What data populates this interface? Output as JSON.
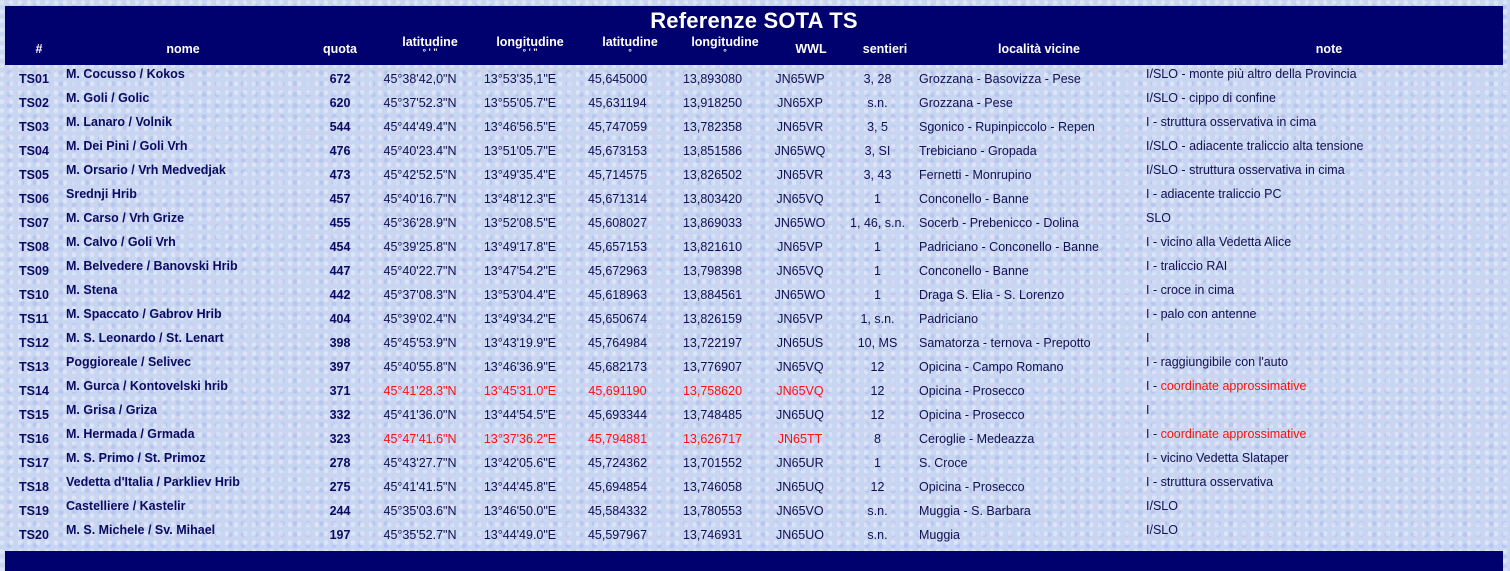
{
  "title": "Referenze SOTA TS",
  "headers": {
    "num": "#",
    "nome": "nome",
    "quota": "quota",
    "lat_dms": "latitudine",
    "lat_dms_unit": "° ' \"",
    "lon_dms": "longitudine",
    "lon_dms_unit": "° ' \"",
    "lat_dec": "latitudine",
    "lat_dec_unit": "°",
    "lon_dec": "longitudine",
    "lon_dec_unit": "°",
    "wwl": "WWL",
    "sentieri": "sentieri",
    "localita": "località vicine",
    "note": "note"
  },
  "colors": {
    "header_bg": "#00006e",
    "text": "#101050",
    "highlight": "#ff1010"
  },
  "rows": [
    {
      "id": "TS01",
      "nome": "M. Cocusso / Kokos",
      "quota": "672",
      "lat_dms": "45°38'42,0\"N",
      "lon_dms": "13°53'35,1\"E",
      "lat_dec": "45,645000",
      "lon_dec": "13,893080",
      "wwl": "JN65WP",
      "sentieri": "3, 28",
      "localita": "Grozzana - Basovizza - Pese",
      "note_prefix": "I/SLO - monte più altro della Provincia",
      "note_red": "",
      "red_coords": false
    },
    {
      "id": "TS02",
      "nome": "M. Goli / Golic",
      "quota": "620",
      "lat_dms": "45°37'52.3\"N",
      "lon_dms": "13°55'05.7\"E",
      "lat_dec": "45,631194",
      "lon_dec": "13,918250",
      "wwl": "JN65XP",
      "sentieri": "s.n.",
      "localita": "Grozzana - Pese",
      "note_prefix": "I/SLO - cippo di confine",
      "note_red": "",
      "red_coords": false
    },
    {
      "id": "TS03",
      "nome": "M. Lanaro / Volnik",
      "quota": "544",
      "lat_dms": "45°44'49.4\"N",
      "lon_dms": "13°46'56.5\"E",
      "lat_dec": "45,747059",
      "lon_dec": "13,782358",
      "wwl": "JN65VR",
      "sentieri": "3, 5",
      "localita": "Sgonico - Rupinpiccolo - Repen",
      "note_prefix": "I - struttura osservativa in cima",
      "note_red": "",
      "red_coords": false
    },
    {
      "id": "TS04",
      "nome": "M. Dei Pini / Goli Vrh",
      "quota": "476",
      "lat_dms": "45°40'23.4\"N",
      "lon_dms": "13°51'05.7\"E",
      "lat_dec": "45,673153",
      "lon_dec": "13,851586",
      "wwl": "JN65WQ",
      "sentieri": "3, SI",
      "localita": "Trebiciano - Gropada",
      "note_prefix": "I/SLO - adiacente traliccio alta tensione",
      "note_red": "",
      "red_coords": false
    },
    {
      "id": "TS05",
      "nome": "M. Orsario / Vrh Medvedjak",
      "quota": "473",
      "lat_dms": "45°42'52.5\"N",
      "lon_dms": "13°49'35.4\"E",
      "lat_dec": "45,714575",
      "lon_dec": "13,826502",
      "wwl": "JN65VR",
      "sentieri": "3, 43",
      "localita": "Fernetti - Monrupino",
      "note_prefix": "I/SLO - struttura osservativa in cima",
      "note_red": "",
      "red_coords": false
    },
    {
      "id": "TS06",
      "nome": "Srednji Hrib",
      "quota": "457",
      "lat_dms": "45°40'16.7\"N",
      "lon_dms": "13°48'12.3\"E",
      "lat_dec": "45,671314",
      "lon_dec": "13,803420",
      "wwl": "JN65VQ",
      "sentieri": "1",
      "localita": "Conconello - Banne",
      "note_prefix": "I - adiacente traliccio PC",
      "note_red": "",
      "red_coords": false
    },
    {
      "id": "TS07",
      "nome": "M. Carso / Vrh Grize",
      "quota": "455",
      "lat_dms": "45°36'28.9\"N",
      "lon_dms": "13°52'08.5\"E",
      "lat_dec": "45,608027",
      "lon_dec": "13,869033",
      "wwl": "JN65WO",
      "sentieri": "1, 46, s.n.",
      "localita": "Socerb - Prebenicco - Dolina",
      "note_prefix": "SLO",
      "note_red": "",
      "red_coords": false
    },
    {
      "id": "TS08",
      "nome": "M. Calvo / Goli Vrh",
      "quota": "454",
      "lat_dms": "45°39'25.8\"N",
      "lon_dms": "13°49'17.8\"E",
      "lat_dec": "45,657153",
      "lon_dec": "13,821610",
      "wwl": "JN65VP",
      "sentieri": "1",
      "localita": "Padriciano - Conconello - Banne",
      "note_prefix": "I - vicino alla Vedetta Alice",
      "note_red": "",
      "red_coords": false
    },
    {
      "id": "TS09",
      "nome": "M. Belvedere / Banovski Hrib",
      "quota": "447",
      "lat_dms": "45°40'22.7\"N",
      "lon_dms": "13°47'54.2\"E",
      "lat_dec": "45,672963",
      "lon_dec": "13,798398",
      "wwl": "JN65VQ",
      "sentieri": "1",
      "localita": "Conconello - Banne",
      "note_prefix": "I - traliccio RAI",
      "note_red": "",
      "red_coords": false
    },
    {
      "id": "TS10",
      "nome": "M. Stena",
      "quota": "442",
      "lat_dms": "45°37'08.3\"N",
      "lon_dms": "13°53'04.4\"E",
      "lat_dec": "45,618963",
      "lon_dec": "13,884561",
      "wwl": "JN65WO",
      "sentieri": "1",
      "localita": "Draga S. Elia - S. Lorenzo",
      "note_prefix": "I - croce in cima",
      "note_red": "",
      "red_coords": false
    },
    {
      "id": "TS11",
      "nome": "M. Spaccato / Gabrov Hrib",
      "quota": "404",
      "lat_dms": "45°39'02.4\"N",
      "lon_dms": "13°49'34.2\"E",
      "lat_dec": "45,650674",
      "lon_dec": "13,826159",
      "wwl": "JN65VP",
      "sentieri": "1, s.n.",
      "localita": "Padriciano",
      "note_prefix": "I - palo con antenne",
      "note_red": "",
      "red_coords": false
    },
    {
      "id": "TS12",
      "nome": "M. S. Leonardo /  St. Lenart",
      "quota": "398",
      "lat_dms": "45°45'53.9\"N",
      "lon_dms": "13°43'19.9\"E",
      "lat_dec": "45,764984",
      "lon_dec": "13,722197",
      "wwl": "JN65US",
      "sentieri": "10, MS",
      "localita": "Samatorza - ternova - Prepotto",
      "note_prefix": "I",
      "note_red": "",
      "red_coords": false
    },
    {
      "id": "TS13",
      "nome": "Poggioreale / Selivec",
      "quota": "397",
      "lat_dms": "45°40'55.8\"N",
      "lon_dms": "13°46'36.9\"E",
      "lat_dec": "45,682173",
      "lon_dec": "13,776907",
      "wwl": "JN65VQ",
      "sentieri": "12",
      "localita": "Opicina - Campo Romano",
      "note_prefix": "I - raggiungibile con l'auto",
      "note_red": "",
      "red_coords": false
    },
    {
      "id": "TS14",
      "nome": "M. Gurca / Kontovelski hrib",
      "quota": "371",
      "lat_dms": "45°41'28.3\"N",
      "lon_dms": "13°45'31.0\"E",
      "lat_dec": "45,691190",
      "lon_dec": "13,758620",
      "wwl": "JN65VQ",
      "sentieri": "12",
      "localita": "Opicina - Prosecco",
      "note_prefix": "I - ",
      "note_red": "coordinate approssimative",
      "red_coords": true
    },
    {
      "id": "TS15",
      "nome": "M. Grisa / Griza",
      "quota": "332",
      "lat_dms": "45°41'36.0\"N",
      "lon_dms": "13°44'54.5\"E",
      "lat_dec": "45,693344",
      "lon_dec": "13,748485",
      "wwl": "JN65UQ",
      "sentieri": "12",
      "localita": "Opicina - Prosecco",
      "note_prefix": "I",
      "note_red": "",
      "red_coords": false
    },
    {
      "id": "TS16",
      "nome": "M. Hermada / Grmada",
      "quota": "323",
      "lat_dms": "45°47'41.6\"N",
      "lon_dms": "13°37'36.2\"E",
      "lat_dec": "45,794881",
      "lon_dec": "13,626717",
      "wwl": "JN65TT",
      "sentieri": "8",
      "localita": "Ceroglie - Medeazza",
      "note_prefix": "I - ",
      "note_red": "coordinate approssimative",
      "red_coords": true
    },
    {
      "id": "TS17",
      "nome": "M. S. Primo / St. Primoz",
      "quota": "278",
      "lat_dms": "45°43'27.7\"N",
      "lon_dms": "13°42'05.6\"E",
      "lat_dec": "45,724362",
      "lon_dec": "13,701552",
      "wwl": "JN65UR",
      "sentieri": "1",
      "localita": "S. Croce",
      "note_prefix": "I - vicino Vedetta Slataper",
      "note_red": "",
      "red_coords": false
    },
    {
      "id": "TS18",
      "nome": "Vedetta d'Italia / Parkliev Hrib",
      "quota": "275",
      "lat_dms": "45°41'41.5\"N",
      "lon_dms": "13°44'45.8\"E",
      "lat_dec": "45,694854",
      "lon_dec": "13,746058",
      "wwl": "JN65UQ",
      "sentieri": "12",
      "localita": "Opicina - Prosecco",
      "note_prefix": "I - struttura osservativa",
      "note_red": "",
      "red_coords": false
    },
    {
      "id": "TS19",
      "nome": "Castelliere / Kastelir",
      "quota": "244",
      "lat_dms": "45°35'03.6\"N",
      "lon_dms": "13°46'50.0\"E",
      "lat_dec": "45,584332",
      "lon_dec": "13,780553",
      "wwl": "JN65VO",
      "sentieri": "s.n.",
      "localita": "Muggia - S. Barbara",
      "note_prefix": "I/SLO",
      "note_red": "",
      "red_coords": false
    },
    {
      "id": "TS20",
      "nome": "M. S. Michele / Sv. Mihael",
      "quota": "197",
      "lat_dms": "45°35'52.7\"N",
      "lon_dms": "13°44'49.0\"E",
      "lat_dec": "45,597967",
      "lon_dec": "13,746931",
      "wwl": "JN65UO",
      "sentieri": "s.n.",
      "localita": "Muggia",
      "note_prefix": "I/SLO",
      "note_red": "",
      "red_coords": false
    }
  ]
}
